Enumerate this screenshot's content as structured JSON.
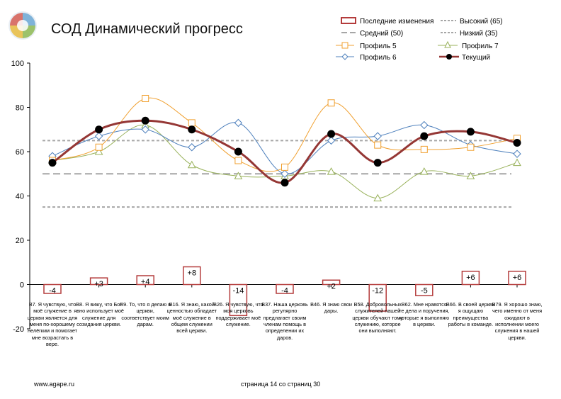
{
  "page": {
    "title": "СОД Динамический прогресс",
    "footer_url": "www.agape.ru",
    "footer_page": "страница 14 со страниц 30"
  },
  "legend": {
    "changes": "Последние изменения",
    "high": "Высокий (65)",
    "mid": "Средний (50)",
    "low": "Низкий (35)",
    "p5": "Профиль 5",
    "p7": "Профиль 7",
    "p6": "Профиль 6",
    "current": "Текущий"
  },
  "colors": {
    "changes": "#b43c3c",
    "reference": "#a6a6a6",
    "p5": "#f0a030",
    "p7": "#98b15a",
    "p6": "#4f81bd",
    "current": "#953735"
  },
  "chart_data": {
    "type": "line",
    "ylim": [
      -20,
      100
    ],
    "yticks": [
      "100",
      "80",
      "60",
      "40",
      "20",
      "0",
      "-20"
    ],
    "categories": [
      "B7. Я чувствую, что моё служение в церкви является для меня по-хорошему нелёгким и помогает мне возрастать в вере.",
      "B8. Я вижу, что Бог явно использует моё служение для созидания церкви.",
      "B9. То, что я делаю в церкви, соответствует моим дарам.",
      "B16. Я знаю, какой ценностью обладает моё служение в общем служении всей церкви.",
      "B26. Я чувствую, что моя церковь поддерживает моё служение.",
      "B37. Наша церковь регулярно предлагает своим членам помощь в определении их даров.",
      "B46. Я знаю свои дары.",
      "B58. Добровольных служителей нашей церкви обучают тому служению, которое они выполняют.",
      "B62. Мне нравятся те дела и поручения, которые я выполняю в церкви.",
      "B66. В своей церкви я ощущаю преимущества работы в команде.",
      "B79. Я хорошо знаю, чего именно от меня ожидают в исполнении моего служения в нашей церкви."
    ],
    "reference_lines": [
      {
        "name": "Высокий (65)",
        "value": 65
      },
      {
        "name": "Средний (50)",
        "value": 50
      },
      {
        "name": "Низкий (35)",
        "value": 35
      }
    ],
    "changes": [
      -4,
      3,
      4,
      8,
      -14,
      -4,
      2,
      -12,
      -5,
      6,
      6
    ],
    "change_labels": [
      "-4",
      "+3",
      "+4",
      "+8",
      "-14",
      "-4",
      "+2",
      "-12",
      "-5",
      "+6",
      "+6"
    ],
    "series": [
      {
        "name": "Профиль 5",
        "values": [
          56,
          62,
          84,
          73,
          56,
          53,
          82,
          63,
          61,
          62,
          66
        ]
      },
      {
        "name": "Профиль 6",
        "values": [
          58,
          67,
          70,
          62,
          73,
          50,
          65,
          67,
          72,
          63,
          59
        ]
      },
      {
        "name": "Профиль 7",
        "values": [
          56,
          60,
          72,
          54,
          49,
          49,
          51,
          39,
          51,
          49,
          55
        ]
      },
      {
        "name": "Текущий",
        "values": [
          55,
          70,
          74,
          70,
          60,
          46,
          68,
          55,
          67,
          69,
          64
        ]
      }
    ]
  }
}
